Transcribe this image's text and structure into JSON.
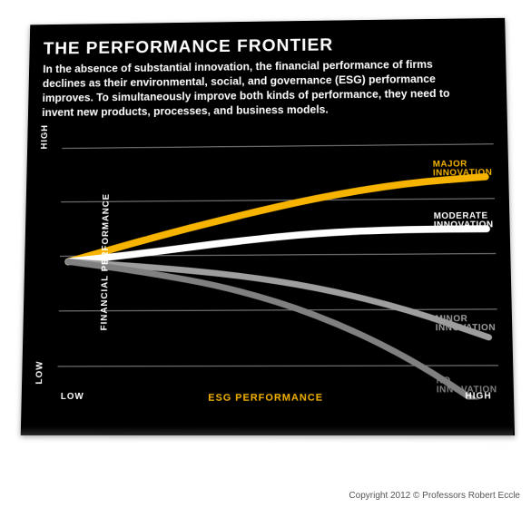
{
  "title": "THE PERFORMANCE FRONTIER",
  "subtitle": "In the absence of substantial innovation, the financial performance of firms declines as their environmental, social, and governance (ESG) performance improves. To simultaneously improve both kinds of performance, they need to invent new products, processes, and business models.",
  "copyright": "Copyright 2012 © Professors Robert Eccle",
  "chart": {
    "type": "line",
    "background_color": "#000000",
    "grid_color": "#8a8a8a",
    "grid_width": 1,
    "xlabel": "ESG PERFORMANCE",
    "xlabel_color": "#f6b400",
    "ylabel": "FINANCIAL PERFORMANCE",
    "ylabel_color": "#ffffff",
    "axis_label_fontsize": 11,
    "tick_fontsize": 10,
    "xticks": {
      "low": "LOW",
      "high": "HIGH"
    },
    "yticks": {
      "low": "LOW",
      "high": "HIGH"
    },
    "xlim": [
      0,
      100
    ],
    "ylim": [
      0,
      100
    ],
    "grid_y_positions": [
      12,
      32,
      52,
      72,
      92
    ],
    "series": [
      {
        "name": "major",
        "label": "MAJOR INNOVATION",
        "color": "#f6b400",
        "stroke_width": 8,
        "points": [
          [
            2,
            50
          ],
          [
            20,
            58
          ],
          [
            40,
            66
          ],
          [
            60,
            73
          ],
          [
            80,
            78
          ],
          [
            98,
            80
          ]
        ]
      },
      {
        "name": "moderate",
        "label": "MODERATE INNOVATION",
        "color": "#ffffff",
        "stroke_width": 8,
        "points": [
          [
            2,
            50
          ],
          [
            20,
            53
          ],
          [
            40,
            57
          ],
          [
            60,
            60
          ],
          [
            80,
            61
          ],
          [
            98,
            61
          ]
        ]
      },
      {
        "name": "minor",
        "label": "MINOR INNOVATION",
        "color": "#9e9e9e",
        "stroke_width": 7,
        "points": [
          [
            2,
            50
          ],
          [
            20,
            48
          ],
          [
            40,
            45
          ],
          [
            60,
            40
          ],
          [
            80,
            32
          ],
          [
            98,
            22
          ]
        ]
      },
      {
        "name": "none",
        "label": "NO INNOVATION",
        "color": "#808080",
        "stroke_width": 7,
        "points": [
          [
            2,
            50
          ],
          [
            20,
            46
          ],
          [
            40,
            40
          ],
          [
            60,
            30
          ],
          [
            80,
            15
          ],
          [
            98,
            -4
          ]
        ]
      }
    ],
    "series_label_fontsize": 10,
    "series_label_positions": {
      "major": {
        "right": 2,
        "topPct": 14
      },
      "moderate": {
        "right": 2,
        "topPct": 33
      },
      "minor": {
        "right": 2,
        "topPct": 70
      },
      "none": {
        "right": 2,
        "topPct": 92
      }
    }
  }
}
